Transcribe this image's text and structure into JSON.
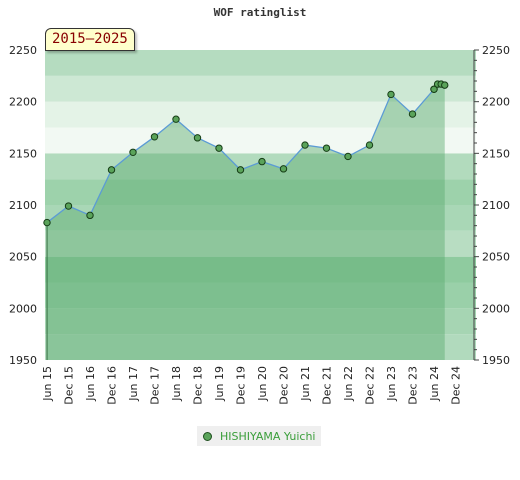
{
  "chart_data": {
    "type": "area",
    "title": "WOF ratinglist",
    "period_label": "2015–2025",
    "ylim": [
      1950,
      2250
    ],
    "yticks": [
      1950,
      2000,
      2050,
      2100,
      2150,
      2200,
      2250
    ],
    "x_tick_labels": [
      "Jun 15",
      "Dec 15",
      "Jun 16",
      "Dec 16",
      "Jun 17",
      "Dec 17",
      "Jun 18",
      "Dec 18",
      "Jun 19",
      "Dec 19",
      "Jun 20",
      "Dec 20",
      "Jun 21",
      "Dec 21",
      "Jun 22",
      "Dec 22",
      "Jun 23",
      "Dec 23",
      "Jun 24",
      "Dec 24"
    ],
    "legend_position": "bottom",
    "series": [
      {
        "name": "HISHIYAMA Yuichi",
        "color": "#5aa35a",
        "points": [
          {
            "x": "Jun 15",
            "y": 2083
          },
          {
            "x": "Dec 15",
            "y": 2099
          },
          {
            "x": "Jun 16",
            "y": 2090
          },
          {
            "x": "Dec 16",
            "y": 2134
          },
          {
            "x": "Jun 17",
            "y": 2151
          },
          {
            "x": "Dec 17",
            "y": 2166
          },
          {
            "x": "Jun 18",
            "y": 2183
          },
          {
            "x": "Dec 18",
            "y": 2165
          },
          {
            "x": "Jun 19",
            "y": 2155
          },
          {
            "x": "Dec 19",
            "y": 2134
          },
          {
            "x": "Jun 20",
            "y": 2142
          },
          {
            "x": "Dec 20",
            "y": 2135
          },
          {
            "x": "Jun 21",
            "y": 2158
          },
          {
            "x": "Dec 21",
            "y": 2155
          },
          {
            "x": "Jun 22",
            "y": 2147
          },
          {
            "x": "Dec 22",
            "y": 2158
          },
          {
            "x": "Jun 23",
            "y": 2207
          },
          {
            "x": "Dec 23",
            "y": 2188
          },
          {
            "x": "Jun 24",
            "y": 2212
          },
          {
            "x": "Jun 24",
            "y": 2212
          },
          {
            "x": "Jul 24",
            "y": 2217
          },
          {
            "x": "Aug 24",
            "y": 2217
          },
          {
            "x": "Sep 24",
            "y": 2216
          }
        ]
      }
    ]
  },
  "colors": {
    "band_light": "#d6ecdc",
    "band_mid": "#b9dfc3",
    "band_dark": "#9ad1a9",
    "fill": "rgba(90,170,110,0.45)",
    "line": "#5b9bd5"
  }
}
